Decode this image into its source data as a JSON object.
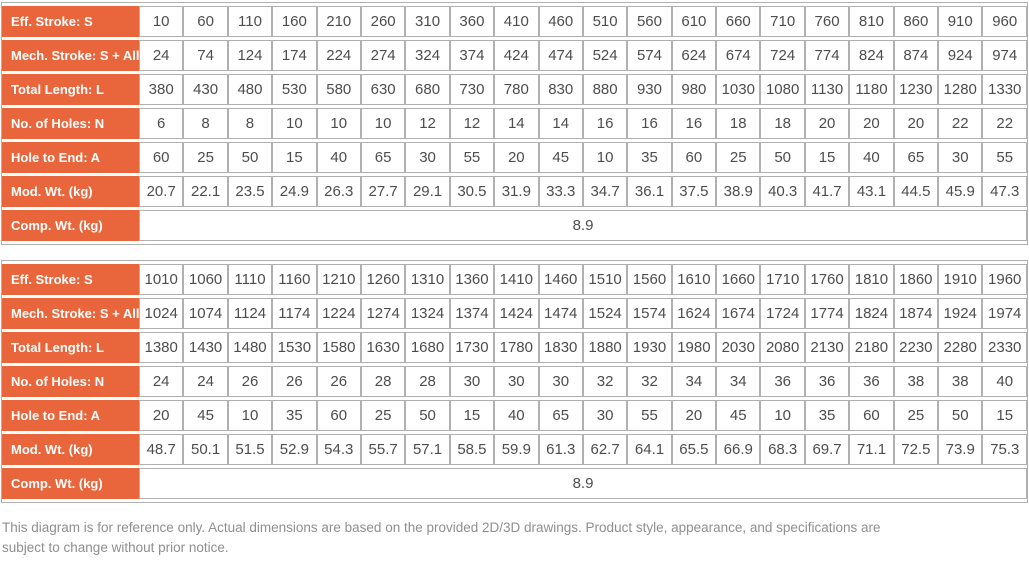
{
  "colors": {
    "header_bg": "#e9663c",
    "header_text": "#ffffff",
    "cell_text": "#4d4d4d",
    "border": "#b0b0b0",
    "note_text": "#8f8f8f",
    "cell_bg": "#ffffff"
  },
  "tables": [
    {
      "name": "spec-table-1",
      "rows": [
        {
          "label": "Eff. Stroke: S",
          "values": [
            "10",
            "60",
            "110",
            "160",
            "210",
            "260",
            "310",
            "360",
            "410",
            "460",
            "510",
            "560",
            "610",
            "660",
            "710",
            "760",
            "810",
            "860",
            "910",
            "960"
          ]
        },
        {
          "label": "Mech. Stroke: S + All.",
          "values": [
            "24",
            "74",
            "124",
            "174",
            "224",
            "274",
            "324",
            "374",
            "424",
            "474",
            "524",
            "574",
            "624",
            "674",
            "724",
            "774",
            "824",
            "874",
            "924",
            "974"
          ]
        },
        {
          "label": "Total Length: L",
          "values": [
            "380",
            "430",
            "480",
            "530",
            "580",
            "630",
            "680",
            "730",
            "780",
            "830",
            "880",
            "930",
            "980",
            "1030",
            "1080",
            "1130",
            "1180",
            "1230",
            "1280",
            "1330"
          ]
        },
        {
          "label": "No. of Holes: N",
          "values": [
            "6",
            "8",
            "8",
            "10",
            "10",
            "10",
            "12",
            "12",
            "14",
            "14",
            "16",
            "16",
            "16",
            "18",
            "18",
            "20",
            "20",
            "20",
            "22",
            "22"
          ]
        },
        {
          "label": "Hole to End: A",
          "values": [
            "60",
            "25",
            "50",
            "15",
            "40",
            "65",
            "30",
            "55",
            "20",
            "45",
            "10",
            "35",
            "60",
            "25",
            "50",
            "15",
            "40",
            "65",
            "30",
            "55"
          ]
        },
        {
          "label": "Mod. Wt. (kg)",
          "values": [
            "20.7",
            "22.1",
            "23.5",
            "24.9",
            "26.3",
            "27.7",
            "29.1",
            "30.5",
            "31.9",
            "33.3",
            "34.7",
            "36.1",
            "37.5",
            "38.9",
            "40.3",
            "41.7",
            "43.1",
            "44.5",
            "45.9",
            "47.3"
          ]
        },
        {
          "label": "Comp. Wt. (kg)",
          "span_value": "8.9"
        }
      ]
    },
    {
      "name": "spec-table-2",
      "rows": [
        {
          "label": "Eff. Stroke: S",
          "values": [
            "1010",
            "1060",
            "1110",
            "1160",
            "1210",
            "1260",
            "1310",
            "1360",
            "1410",
            "1460",
            "1510",
            "1560",
            "1610",
            "1660",
            "1710",
            "1760",
            "1810",
            "1860",
            "1910",
            "1960"
          ]
        },
        {
          "label": "Mech. Stroke: S + All.",
          "values": [
            "1024",
            "1074",
            "1124",
            "1174",
            "1224",
            "1274",
            "1324",
            "1374",
            "1424",
            "1474",
            "1524",
            "1574",
            "1624",
            "1674",
            "1724",
            "1774",
            "1824",
            "1874",
            "1924",
            "1974"
          ]
        },
        {
          "label": "Total Length: L",
          "values": [
            "1380",
            "1430",
            "1480",
            "1530",
            "1580",
            "1630",
            "1680",
            "1730",
            "1780",
            "1830",
            "1880",
            "1930",
            "1980",
            "2030",
            "2080",
            "2130",
            "2180",
            "2230",
            "2280",
            "2330"
          ]
        },
        {
          "label": "No. of Holes: N",
          "values": [
            "24",
            "24",
            "26",
            "26",
            "26",
            "28",
            "28",
            "30",
            "30",
            "30",
            "32",
            "32",
            "34",
            "34",
            "36",
            "36",
            "36",
            "38",
            "38",
            "40"
          ]
        },
        {
          "label": "Hole to End: A",
          "values": [
            "20",
            "45",
            "10",
            "35",
            "60",
            "25",
            "50",
            "15",
            "40",
            "65",
            "30",
            "55",
            "20",
            "45",
            "10",
            "35",
            "60",
            "25",
            "50",
            "15"
          ]
        },
        {
          "label": "Mod. Wt. (kg)",
          "values": [
            "48.7",
            "50.1",
            "51.5",
            "52.9",
            "54.3",
            "55.7",
            "57.1",
            "58.5",
            "59.9",
            "61.3",
            "62.7",
            "64.1",
            "65.5",
            "66.9",
            "68.3",
            "69.7",
            "71.1",
            "72.5",
            "73.9",
            "75.3"
          ]
        },
        {
          "label": "Comp. Wt. (kg)",
          "span_value": "8.9"
        }
      ]
    }
  ],
  "note": "This diagram is for reference only. Actual dimensions are based on the provided 2D/3D drawings. Product style, appearance, and specifications are subject to change without prior notice."
}
